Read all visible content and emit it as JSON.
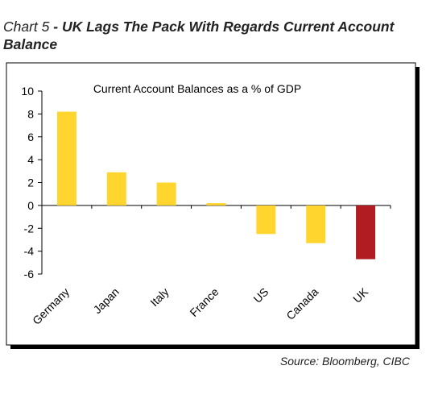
{
  "header": {
    "prefix": "Chart 5",
    "separator": " - ",
    "title": "UK Lags The Pack With Regards Current Account Balance"
  },
  "chart_data": {
    "type": "bar",
    "title": "Current Account Balances as a % of GDP",
    "categories": [
      "Germany",
      "Japan",
      "Italy",
      "France",
      "US",
      "Canada",
      "UK"
    ],
    "values": [
      8.2,
      2.9,
      2.0,
      0.2,
      -2.5,
      -3.3,
      -4.7
    ],
    "colors": [
      "#ffd52e",
      "#ffd52e",
      "#ffd52e",
      "#ffd52e",
      "#ffd52e",
      "#ffd52e",
      "#b01c22"
    ],
    "ylim": [
      -6,
      10
    ],
    "yticks": [
      10,
      8,
      6,
      4,
      2,
      0,
      -2,
      -4,
      -6
    ],
    "xlabel": "",
    "ylabel": "",
    "grid": false
  },
  "footer": {
    "source": "Source:  Bloomberg, CIBC"
  }
}
